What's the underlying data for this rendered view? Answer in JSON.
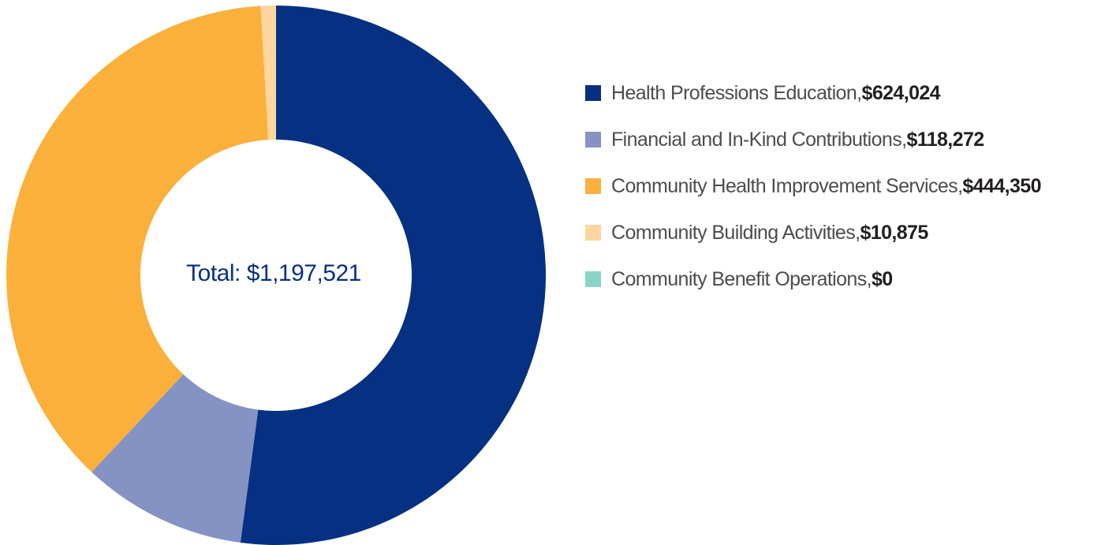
{
  "chart_data": {
    "type": "pie",
    "title": "",
    "center_label": "Total: $1,197,521",
    "start_angle_deg": 0,
    "direction": "clockwise",
    "categories": [
      "Health Professions Education",
      "Financial and In-Kind Contributions",
      "Community Health Improvement Services",
      "Community Building Activities",
      "Community Benefit Operations"
    ],
    "values": [
      624024,
      118272,
      444350,
      10875,
      0
    ],
    "value_labels": [
      "$624,024",
      "$118,272",
      "$444,350",
      "$10,875",
      "$0"
    ],
    "colors": [
      "#063182",
      "#8592c4",
      "#fbb03b",
      "#fdd59e",
      "#8bd3c7"
    ],
    "legend_position": "right"
  }
}
